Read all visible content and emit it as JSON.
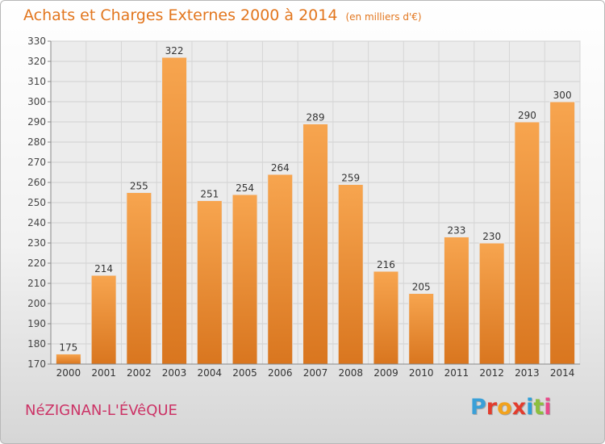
{
  "header": {
    "title": "Achats et Charges Externes 2000 à 2014",
    "subtitle": "(en milliers d'€)"
  },
  "footer": {
    "commune": "NéZIGNAN-L'ÉVêQUE",
    "logo_letters": [
      "P",
      "r",
      "o",
      "x",
      "i",
      "t",
      "i"
    ],
    "logo_colors": [
      "#3aa0d8",
      "#e23d2e",
      "#f2a21d",
      "#e23d2e",
      "#2e9fd8",
      "#8cbf3f",
      "#e84a8a"
    ]
  },
  "colors": {
    "bar_light": "#f7a54f",
    "bar_dark": "#d9761f",
    "title": "#e2761e",
    "commune": "#cc3366"
  },
  "chart_data": {
    "type": "bar",
    "categories": [
      "2000",
      "2001",
      "2002",
      "2003",
      "2004",
      "2005",
      "2006",
      "2007",
      "2008",
      "2009",
      "2010",
      "2011",
      "2012",
      "2013",
      "2014"
    ],
    "values": [
      175,
      214,
      255,
      322,
      251,
      254,
      264,
      289,
      259,
      216,
      205,
      233,
      230,
      290,
      300
    ],
    "ylim": [
      170,
      330
    ],
    "yticks": [
      170,
      180,
      190,
      200,
      210,
      220,
      230,
      240,
      250,
      260,
      270,
      280,
      290,
      300,
      310,
      320,
      330
    ],
    "grid": true
  }
}
